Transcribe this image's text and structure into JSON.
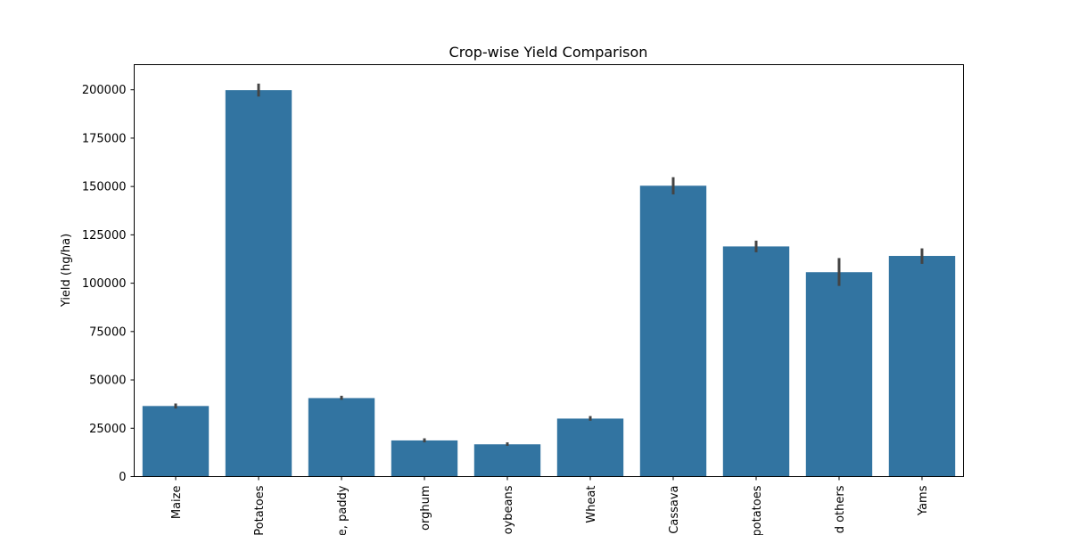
{
  "chart_data": {
    "type": "bar",
    "title": "Crop-wise Yield Comparison",
    "xlabel": "",
    "ylabel": "Yield (hg/ha)",
    "ylim": [
      0,
      213000
    ],
    "yticks": [
      0,
      25000,
      50000,
      75000,
      100000,
      125000,
      150000,
      175000,
      200000
    ],
    "ytick_labels": [
      "0",
      "25000",
      "50000",
      "75000",
      "100000",
      "125000",
      "150000",
      "175000",
      "200000"
    ],
    "categories": [
      "Maize",
      "Potatoes",
      "Rice, paddy",
      "Sorghum",
      "Soybeans",
      "Wheat",
      "Cassava",
      "Sweet potatoes",
      "Plantains and others",
      "Yams"
    ],
    "category_labels_visible": [
      "Maize",
      "Potatoes",
      "e, paddy",
      "orghum",
      "oybeans",
      "Wheat",
      "Cassava",
      "potatoes",
      "d others",
      "Yams"
    ],
    "values": [
      36500,
      199800,
      40600,
      18700,
      16700,
      30000,
      150400,
      119000,
      105700,
      114100
    ],
    "error_bars": [
      [
        35200,
        37800
      ],
      [
        196500,
        203200
      ],
      [
        39700,
        41800
      ],
      [
        17700,
        19800
      ],
      [
        15900,
        17700
      ],
      [
        28900,
        31300
      ],
      [
        145900,
        154800
      ],
      [
        116000,
        122000
      ],
      [
        98600,
        113000
      ],
      [
        110000,
        118000
      ]
    ],
    "bar_color": "#3274a1",
    "error_color": "#444444",
    "grid": false,
    "legend": "none"
  }
}
